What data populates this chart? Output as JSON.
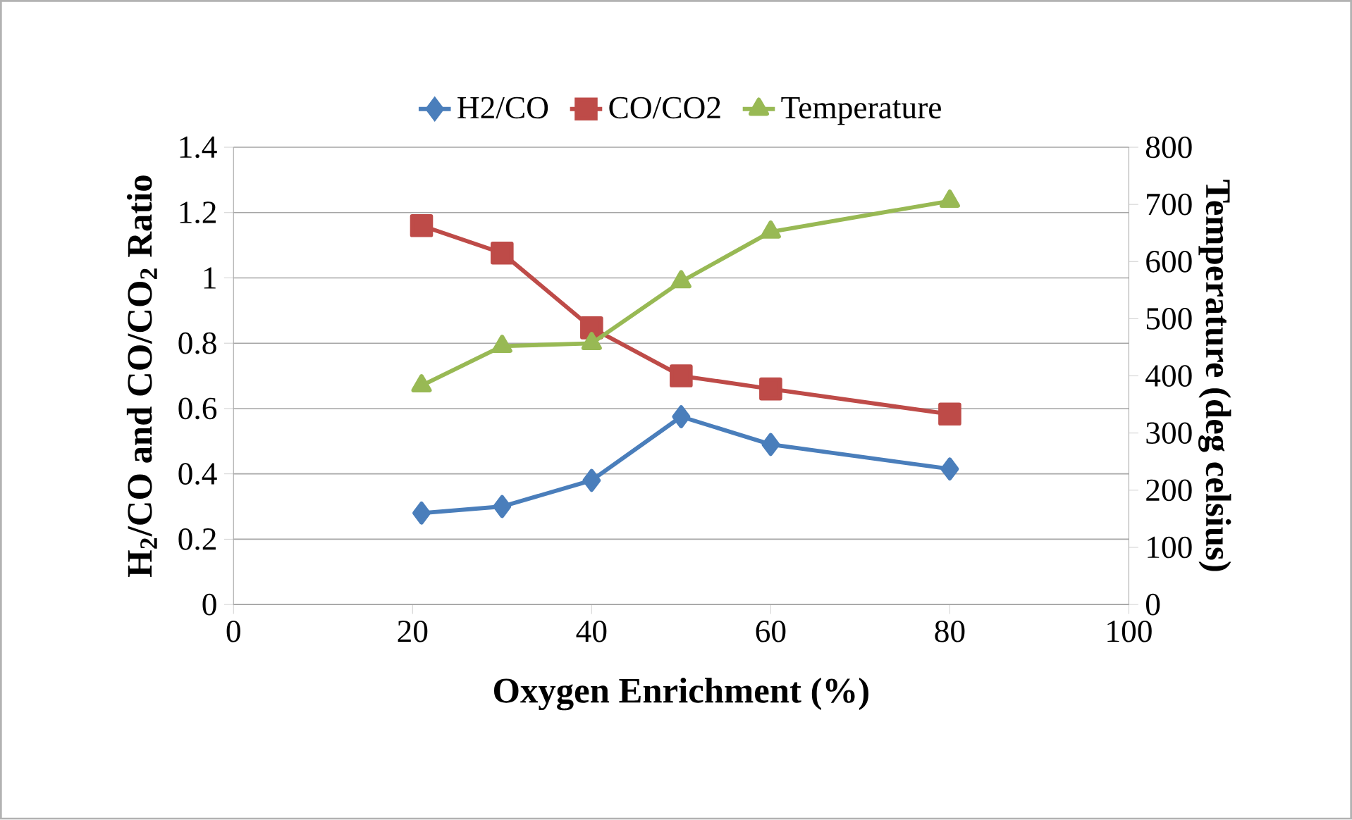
{
  "chart_data": {
    "type": "line",
    "xlabel": "Oxygen Enrichment (%)",
    "ylabel": "H$_{2}$/CO and CO/CO$_{2}$ Ratio",
    "y2label": "Temperature (deg celsius)",
    "x": [
      21,
      30,
      40,
      50,
      60,
      80
    ],
    "xlim": [
      0,
      100
    ],
    "xticks": [
      0,
      20,
      40,
      60,
      80,
      100
    ],
    "ylim": [
      0,
      1.4
    ],
    "yticks": [
      0,
      0.2,
      0.4,
      0.6,
      0.8,
      1,
      1.2,
      1.4
    ],
    "y2lim": [
      0,
      800
    ],
    "y2ticks": [
      0,
      100,
      200,
      300,
      400,
      500,
      600,
      700,
      800
    ],
    "grid": "y",
    "legend": "top",
    "line_style": "solid",
    "series": [
      {
        "name": "H2/CO",
        "color": "#4a7ebb",
        "marker": "diamond",
        "values": [
          0.28,
          0.3,
          0.38,
          0.575,
          0.49,
          0.415
        ]
      },
      {
        "name": "CO/CO2",
        "color": "#be4b48",
        "marker": "square",
        "values": [
          1.16,
          1.076,
          0.847,
          0.7,
          0.66,
          0.583
        ]
      },
      {
        "name": "Temperature",
        "color": "#98b954",
        "marker": "triangle",
        "axis": "y2",
        "values": [
          383,
          452,
          457,
          565,
          652,
          706
        ]
      }
    ]
  }
}
